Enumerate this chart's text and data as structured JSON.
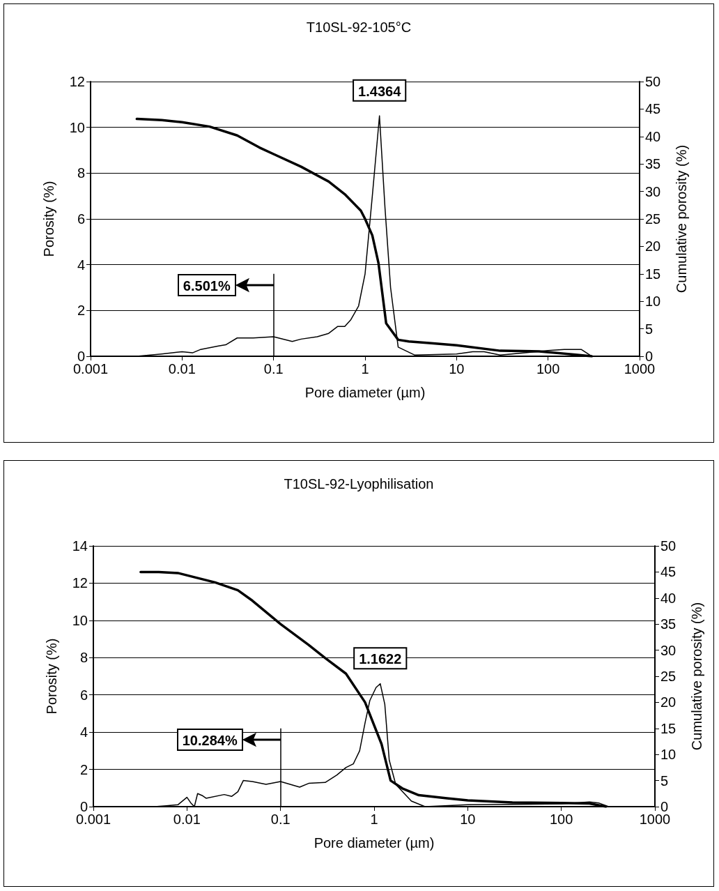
{
  "chart_data": [
    {
      "type": "line",
      "title": "T10SL-92-105°C",
      "xlabel": "Pore diameter (µm)",
      "ylabel": "Porosity (%)",
      "y2label": "Cumulative porosity (%)",
      "log": "x",
      "grid": "y",
      "marker": "none",
      "line_style": "solid",
      "xlim": [
        0.001,
        1000
      ],
      "xticks": [
        0.001,
        0.01,
        0.1,
        1,
        10,
        100,
        1000
      ],
      "ylim": [
        0,
        12
      ],
      "yticks": [
        0,
        2,
        4,
        6,
        8,
        10,
        12
      ],
      "y2lim": [
        0,
        50
      ],
      "y2ticks": [
        0,
        5,
        10,
        15,
        20,
        25,
        30,
        35,
        40,
        45,
        50
      ],
      "annotations": [
        "6.501%",
        {
          "text": "1.4364",
          "x": 1.4364,
          "y": 10.5
        }
      ],
      "ref_lines": [
        {
          "axis": "x",
          "value": 0.1
        }
      ],
      "series": [
        {
          "color": "#000000",
          "x": [
            0.0032,
            0.006,
            0.01,
            0.013,
            0.016,
            0.025,
            0.03,
            0.04,
            0.06,
            0.1,
            0.16,
            0.2,
            0.3,
            0.4,
            0.5,
            0.6,
            0.7,
            0.85,
            1.0,
            1.2,
            1.4364,
            1.65,
            1.9,
            2.3,
            3.5,
            10,
            15,
            20,
            30,
            100,
            150,
            230,
            300
          ],
          "values": [
            0,
            0.1,
            0.2,
            0.15,
            0.3,
            0.45,
            0.5,
            0.8,
            0.8,
            0.85,
            0.65,
            0.75,
            0.85,
            1.0,
            1.3,
            1.3,
            1.6,
            2.2,
            3.6,
            7.0,
            10.5,
            6.5,
            3.0,
            0.4,
            0.05,
            0.1,
            0.2,
            0.2,
            0.05,
            0.25,
            0.3,
            0.3,
            0
          ]
        },
        {
          "color": "#000000",
          "axis": "y2",
          "x": [
            0.0032,
            0.006,
            0.01,
            0.02,
            0.04,
            0.07,
            0.1,
            0.2,
            0.4,
            0.6,
            0.9,
            1.0,
            1.2,
            1.4,
            1.7,
            2.3,
            3,
            5,
            10,
            30,
            80,
            200,
            300
          ],
          "values": [
            43.2,
            43,
            42.6,
            41.8,
            40.2,
            38,
            36.8,
            34.5,
            31.8,
            29.5,
            26.5,
            25,
            22,
            17,
            6,
            3,
            2.7,
            2.4,
            2.0,
            1.0,
            0.9,
            0.3,
            0
          ]
        }
      ]
    },
    {
      "type": "line",
      "title": "T10SL-92-Lyophilisation",
      "xlabel": "Pore diameter (µm)",
      "ylabel": "Porosity (%)",
      "y2label": "Cumulative porosity (%)",
      "log": "x",
      "grid": "y",
      "marker": "none",
      "line_style": "solid",
      "xlim": [
        0.001,
        1000
      ],
      "xticks": [
        0.001,
        0.01,
        0.1,
        1,
        10,
        100,
        1000
      ],
      "ylim": [
        0,
        14
      ],
      "yticks": [
        0,
        2,
        4,
        6,
        8,
        10,
        12,
        14
      ],
      "y2lim": [
        0,
        50
      ],
      "y2ticks": [
        0,
        5,
        10,
        15,
        20,
        25,
        30,
        35,
        40,
        45,
        50
      ],
      "annotations": [
        "10.284%",
        {
          "text": "1.1622",
          "x": 1.1622,
          "y": 6.6
        }
      ],
      "ref_lines": [
        {
          "axis": "x",
          "value": 0.1
        }
      ],
      "series": [
        {
          "color": "#000000",
          "x": [
            0.0045,
            0.006,
            0.008,
            0.01,
            0.011,
            0.012,
            0.013,
            0.0145,
            0.016,
            0.025,
            0.03,
            0.035,
            0.04,
            0.05,
            0.07,
            0.1,
            0.16,
            0.2,
            0.3,
            0.4,
            0.5,
            0.6,
            0.7,
            0.8,
            0.9,
            1.05,
            1.1622,
            1.3,
            1.45,
            1.7,
            2.5,
            3.5,
            10,
            100,
            200,
            250,
            320
          ],
          "values": [
            0,
            0.05,
            0.1,
            0.5,
            0.2,
            0,
            0.7,
            0.6,
            0.45,
            0.65,
            0.55,
            0.8,
            1.4,
            1.35,
            1.2,
            1.35,
            1.05,
            1.25,
            1.3,
            1.7,
            2.1,
            2.3,
            3.0,
            4.5,
            5.7,
            6.4,
            6.6,
            5.5,
            2.5,
            1.2,
            0.3,
            0,
            0.1,
            0.15,
            0.25,
            0.2,
            0
          ]
        },
        {
          "color": "#000000",
          "axis": "y2",
          "x": [
            0.0032,
            0.005,
            0.008,
            0.012,
            0.02,
            0.035,
            0.05,
            0.1,
            0.2,
            0.3,
            0.5,
            0.8,
            1.2,
            1.5,
            2,
            3,
            6,
            10,
            30,
            100,
            200,
            300
          ],
          "values": [
            45,
            45,
            44.8,
            44,
            43,
            41.5,
            39.5,
            35,
            31,
            28.5,
            25.5,
            20,
            12,
            5,
            3.5,
            2.2,
            1.6,
            1.2,
            0.8,
            0.7,
            0.6,
            0
          ]
        }
      ]
    }
  ]
}
